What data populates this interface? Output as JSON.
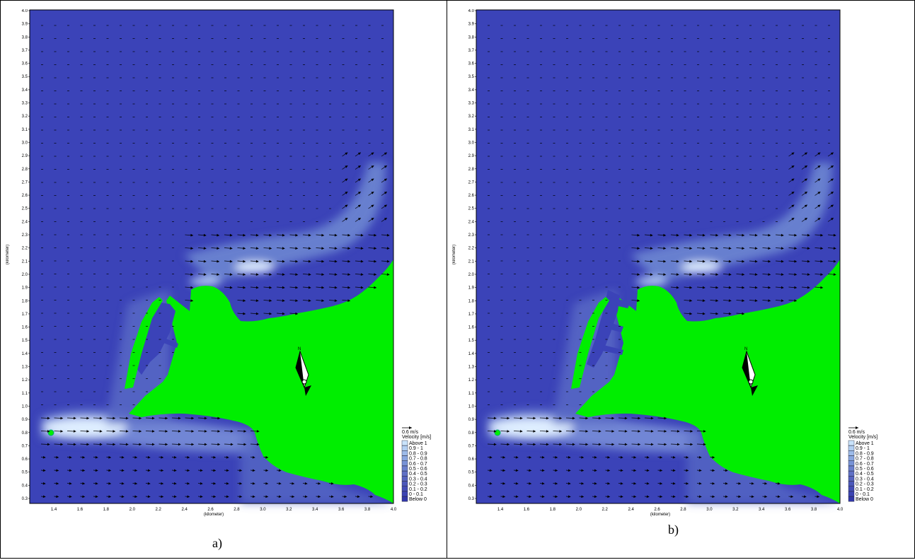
{
  "colors": {
    "water": "#3b43b8",
    "land": "#00ee00",
    "fast": "#e8f4ff",
    "arrow": "#000000"
  },
  "axes": {
    "x_ticks": [
      "1.4",
      "1.6",
      "1.8",
      "2.0",
      "2.2",
      "2.4",
      "2.6",
      "2.8",
      "3.0",
      "3.2",
      "3.4",
      "3.6",
      "3.8",
      "4.0"
    ],
    "y_ticks": [
      "4.0",
      "3.9",
      "3.8",
      "3.7",
      "3.6",
      "3.5",
      "3.4",
      "3.3",
      "3.2",
      "3.1",
      "3.0",
      "2.9",
      "2.8",
      "2.7",
      "2.6",
      "2.5",
      "2.4",
      "2.3",
      "2.2",
      "2.1",
      "2.0",
      "1.9",
      "1.8",
      "1.7",
      "1.6",
      "1.5",
      "1.4",
      "1.3",
      "1.2",
      "1.1",
      "1.0",
      "0.9",
      "0.8",
      "0.7",
      "0.6",
      "0.5",
      "0.4",
      "0.3"
    ],
    "x_label": "(kilometer)",
    "y_label": "(kilometer)"
  },
  "legend": {
    "scale_label": "0.6 m/s",
    "title": "Velocity [m/s]",
    "entries": [
      {
        "label": "Above  1",
        "color": "#c9e3fb"
      },
      {
        "label": "0.9 -  1",
        "color": "#b2cff2"
      },
      {
        "label": "0.8 - 0.9",
        "color": "#9dbbe9"
      },
      {
        "label": "0.7 - 0.8",
        "color": "#89a7e0"
      },
      {
        "label": "0.6 - 0.7",
        "color": "#7893d6"
      },
      {
        "label": "0.5 - 0.6",
        "color": "#6a80cd"
      },
      {
        "label": "0.4 - 0.5",
        "color": "#5f70c5"
      },
      {
        "label": "0.3 - 0.4",
        "color": "#5563bf"
      },
      {
        "label": "0.2 - 0.3",
        "color": "#4b57ba"
      },
      {
        "label": "0.1 - 0.2",
        "color": "#434cb6"
      },
      {
        "label": "0 - 0.1",
        "color": "#3c44b3"
      },
      {
        "label": "Below  0",
        "color": "#3137a8"
      }
    ]
  },
  "north_label": "N",
  "panels": {
    "a": {
      "caption": "a)"
    },
    "b": {
      "caption": "b)"
    }
  }
}
